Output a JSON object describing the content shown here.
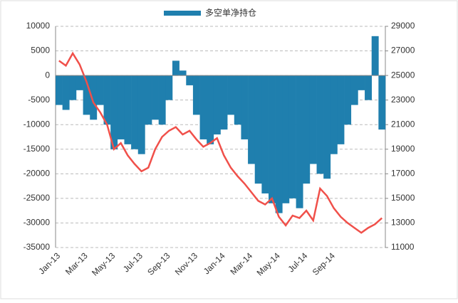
{
  "chart_data": {
    "type": "bar-line",
    "categories": [
      "Jan-13",
      null,
      null,
      null,
      "Mar-13",
      null,
      null,
      null,
      "May-13",
      null,
      null,
      null,
      "Jul-13",
      null,
      null,
      null,
      "Sep-13",
      null,
      null,
      null,
      "Nov-13",
      null,
      null,
      null,
      "Jan-14",
      null,
      null,
      null,
      "Mar-14",
      null,
      null,
      null,
      "May-14",
      null,
      null,
      null,
      "Jul-14",
      null,
      null,
      null,
      "Sep-14",
      null,
      null,
      null,
      null,
      null,
      null,
      null
    ],
    "series": [
      {
        "name": "多空单净持仓",
        "type": "bar",
        "color": "#1f7fae",
        "values": [
          -6000,
          -7000,
          -5000,
          -3000,
          -8000,
          -9000,
          -6000,
          -10000,
          -15000,
          -13000,
          -14000,
          -15000,
          -16000,
          -10000,
          -9000,
          -10000,
          -5000,
          3000,
          1000,
          -2000,
          -8000,
          -13000,
          -14000,
          -12000,
          -11000,
          -8000,
          -10000,
          -13000,
          -18000,
          -22000,
          -24000,
          -26000,
          -28000,
          -26000,
          -25000,
          -27000,
          -22000,
          -18000,
          -20000,
          -21000,
          -16000,
          -14000,
          -10000,
          -6000,
          -3000,
          -5000,
          8000,
          -11000
        ]
      },
      {
        "type": "line",
        "axis": "y2",
        "color": "#f0504a",
        "values": [
          26200,
          25800,
          26800,
          25900,
          24500,
          22800,
          22000,
          21000,
          19000,
          19500,
          18500,
          17800,
          17200,
          17500,
          19000,
          20000,
          20500,
          20800,
          20200,
          20500,
          19800,
          19200,
          19500,
          19900,
          18500,
          17500,
          16800,
          16200,
          15500,
          14800,
          14500,
          15000,
          13500,
          12800,
          13600,
          13400,
          14000,
          13200,
          15800,
          15200,
          14200,
          13500,
          13000,
          12600,
          12200,
          12600,
          12900,
          13400
        ]
      }
    ],
    "ylim": [
      -35000,
      10000
    ],
    "yticks": [
      -35000,
      -30000,
      -25000,
      -20000,
      -15000,
      -10000,
      -5000,
      0,
      5000,
      10000
    ],
    "y2lim": [
      11000,
      29000
    ],
    "y2ticks": [
      11000,
      13000,
      15000,
      17000,
      19000,
      21000,
      23000,
      25000,
      27000,
      29000
    ],
    "grid": true,
    "legend": "top"
  }
}
